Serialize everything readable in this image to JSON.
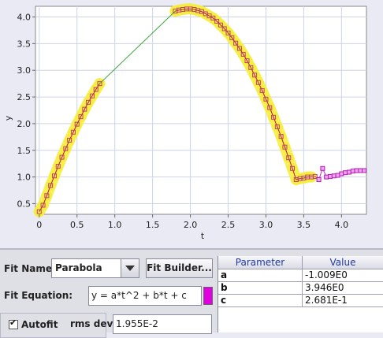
{
  "chart": {
    "xlabel": "t",
    "ylabel": "y",
    "x_ticks": [
      "0",
      "0.5",
      "1.0",
      "1.5",
      "2.0",
      "2.5",
      "3.0",
      "3.5",
      "4.0"
    ],
    "y_ticks": [
      "0.5",
      "1.0",
      "1.5",
      "2.0",
      "2.5",
      "3.0",
      "3.5",
      "4.0"
    ]
  },
  "chart_data": {
    "type": "scatter",
    "xlim": [
      -0.05,
      4.33
    ],
    "ylim": [
      0.3,
      4.2
    ],
    "grid": true,
    "fit_curve": {
      "a": -1.009,
      "b": 3.946,
      "c": 0.2681,
      "x_range": [
        0,
        3.8
      ]
    },
    "series": [
      {
        "x": [
          0.0,
          0.05,
          0.1,
          0.15,
          0.2,
          0.25,
          0.3,
          0.35,
          0.4,
          0.45,
          0.5,
          0.55,
          0.6,
          0.65,
          0.7,
          0.75,
          0.8,
          1.8,
          1.85,
          1.9,
          1.95,
          2.0,
          2.05,
          2.1,
          2.15,
          2.2,
          2.25,
          2.3,
          2.35,
          2.4,
          2.45,
          2.5,
          2.55,
          2.6,
          2.65,
          2.7,
          2.75,
          2.8,
          2.85,
          2.9,
          2.95,
          3.0,
          3.05,
          3.1,
          3.15,
          3.2,
          3.25,
          3.3,
          3.35,
          3.4,
          3.45,
          3.5,
          3.55,
          3.6,
          3.65
        ],
        "y": [
          0.35,
          0.47,
          0.65,
          0.84,
          1.02,
          1.2,
          1.37,
          1.53,
          1.69,
          1.84,
          1.99,
          2.13,
          2.27,
          2.4,
          2.52,
          2.64,
          2.75,
          4.11,
          4.13,
          4.14,
          4.15,
          4.15,
          4.14,
          4.12,
          4.1,
          4.06,
          4.02,
          3.98,
          3.92,
          3.85,
          3.78,
          3.7,
          3.61,
          3.51,
          3.41,
          3.3,
          3.18,
          3.05,
          2.91,
          2.77,
          2.62,
          2.46,
          2.3,
          2.12,
          1.94,
          1.76,
          1.56,
          1.36,
          1.16,
          0.95,
          0.97,
          0.98,
          1.0,
          1.0,
          1.01
        ]
      },
      {
        "name": "excluded",
        "x": [
          3.7,
          3.75,
          3.8,
          3.85,
          3.9,
          3.95,
          4.0,
          4.05,
          4.1,
          4.15,
          4.2,
          4.25,
          4.3
        ],
        "y": [
          0.95,
          1.16,
          1.0,
          1.01,
          1.02,
          1.03,
          1.06,
          1.08,
          1.09,
          1.11,
          1.12,
          1.12,
          1.12
        ]
      }
    ]
  },
  "fit_panel": {
    "fit_name_label": "Fit Name:",
    "fit_name_value": "Parabola",
    "fit_builder_label": "Fit Builder...",
    "fit_equation_label": "Fit Equation:",
    "fit_equation_value": "y = a*t^2 + b*t + c",
    "autofit_label": "Autofit",
    "autofit_checked": true,
    "rms_label": "rms dev:",
    "rms_value": "1.955E-2",
    "swatch_color": "#e000e0"
  },
  "param_table": {
    "headers": [
      "Parameter",
      "Value"
    ],
    "rows": [
      {
        "name": "a",
        "value": "-1.009E0"
      },
      {
        "name": "b",
        "value": "3.946E0"
      },
      {
        "name": "c",
        "value": "2.681E-1"
      }
    ]
  }
}
